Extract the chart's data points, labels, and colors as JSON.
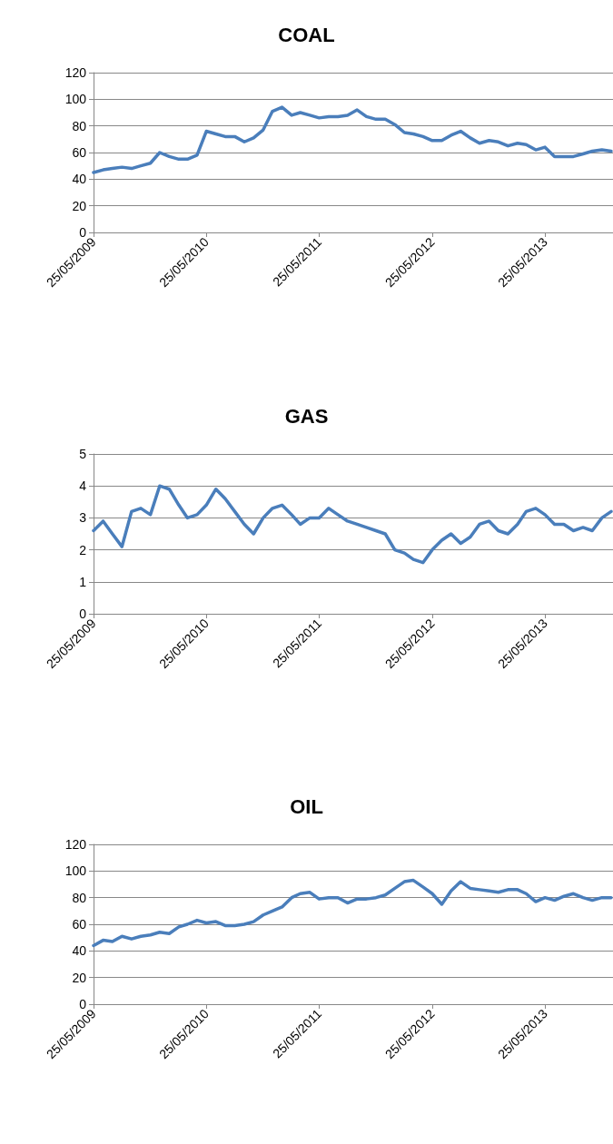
{
  "chart_data": [
    {
      "type": "line",
      "title": "COAL",
      "x": [
        "2009-05-25",
        "2009-06-25",
        "2009-07-25",
        "2009-08-25",
        "2009-09-25",
        "2009-10-25",
        "2009-11-25",
        "2009-12-25",
        "2010-01-25",
        "2010-02-25",
        "2010-03-25",
        "2010-04-25",
        "2010-05-25",
        "2010-06-25",
        "2010-07-25",
        "2010-08-25",
        "2010-09-25",
        "2010-10-25",
        "2010-11-25",
        "2010-12-25",
        "2011-01-25",
        "2011-02-25",
        "2011-03-25",
        "2011-04-25",
        "2011-05-25",
        "2011-06-25",
        "2011-07-25",
        "2011-08-25",
        "2011-09-25",
        "2011-10-25",
        "2011-11-25",
        "2011-12-25",
        "2012-01-25",
        "2012-02-25",
        "2012-03-25",
        "2012-04-25",
        "2012-05-25",
        "2012-06-25",
        "2012-07-25",
        "2012-08-25",
        "2012-09-25",
        "2012-10-25",
        "2012-11-25",
        "2012-12-25",
        "2013-01-25",
        "2013-02-25",
        "2013-03-25",
        "2013-04-25",
        "2013-05-25",
        "2013-06-25",
        "2013-07-25",
        "2013-08-25",
        "2013-09-25",
        "2013-10-25",
        "2013-11-25",
        "2013-12-25"
      ],
      "series": [
        {
          "color": "#4a7ebb",
          "values": [
            45,
            47,
            48,
            49,
            48,
            50,
            52,
            60,
            57,
            55,
            55,
            58,
            76,
            74,
            72,
            72,
            68,
            71,
            77,
            91,
            94,
            88,
            90,
            88,
            86,
            87,
            87,
            88,
            92,
            87,
            85,
            85,
            81,
            75,
            74,
            72,
            69,
            69,
            73,
            76,
            71,
            67,
            69,
            68,
            65,
            67,
            66,
            62,
            64,
            57,
            57,
            57,
            59,
            61,
            62,
            61
          ]
        }
      ],
      "xlim": [
        "2009-05-25",
        "2013-12-31"
      ],
      "xticks": [
        {
          "value": "2009-05-25",
          "label": "25/05/2009"
        },
        {
          "value": "2010-05-25",
          "label": "25/05/2010"
        },
        {
          "value": "2011-05-25",
          "label": "25/05/2011"
        },
        {
          "value": "2012-05-25",
          "label": "25/05/2012"
        },
        {
          "value": "2013-05-25",
          "label": "25/05/2013"
        }
      ],
      "ylim": [
        0,
        120
      ],
      "yticks": [
        0,
        20,
        40,
        60,
        80,
        100,
        120
      ],
      "grid": "y"
    },
    {
      "type": "line",
      "title": "GAS",
      "x": [
        "2009-05-25",
        "2009-06-25",
        "2009-07-25",
        "2009-08-25",
        "2009-09-25",
        "2009-10-25",
        "2009-11-25",
        "2009-12-25",
        "2010-01-25",
        "2010-02-25",
        "2010-03-25",
        "2010-04-25",
        "2010-05-25",
        "2010-06-25",
        "2010-07-25",
        "2010-08-25",
        "2010-09-25",
        "2010-10-25",
        "2010-11-25",
        "2010-12-25",
        "2011-01-25",
        "2011-02-25",
        "2011-03-25",
        "2011-04-25",
        "2011-05-25",
        "2011-06-25",
        "2011-07-25",
        "2011-08-25",
        "2011-09-25",
        "2011-10-25",
        "2011-11-25",
        "2011-12-25",
        "2012-01-25",
        "2012-02-25",
        "2012-03-25",
        "2012-04-25",
        "2012-05-25",
        "2012-06-25",
        "2012-07-25",
        "2012-08-25",
        "2012-09-25",
        "2012-10-25",
        "2012-11-25",
        "2012-12-25",
        "2013-01-25",
        "2013-02-25",
        "2013-03-25",
        "2013-04-25",
        "2013-05-25",
        "2013-06-25",
        "2013-07-25",
        "2013-08-25",
        "2013-09-25",
        "2013-10-25",
        "2013-11-25",
        "2013-12-25"
      ],
      "series": [
        {
          "color": "#4a7ebb",
          "values": [
            2.6,
            2.9,
            2.5,
            2.1,
            3.2,
            3.3,
            3.1,
            4,
            3.9,
            3.4,
            3,
            3.1,
            3.4,
            3.9,
            3.6,
            3.2,
            2.8,
            2.5,
            3,
            3.3,
            3.4,
            3.1,
            2.8,
            3,
            3,
            3.3,
            3.1,
            2.9,
            2.8,
            2.7,
            2.6,
            2.5,
            2,
            1.9,
            1.7,
            1.6,
            2,
            2.3,
            2.5,
            2.2,
            2.4,
            2.8,
            2.9,
            2.6,
            2.5,
            2.8,
            3.2,
            3.3,
            3.1,
            2.8,
            2.8,
            2.6,
            2.7,
            2.6,
            3,
            3.2
          ]
        }
      ],
      "xlim": [
        "2009-05-25",
        "2013-12-31"
      ],
      "xticks": [
        {
          "value": "2009-05-25",
          "label": "25/05/2009"
        },
        {
          "value": "2010-05-25",
          "label": "25/05/2010"
        },
        {
          "value": "2011-05-25",
          "label": "25/05/2011"
        },
        {
          "value": "2012-05-25",
          "label": "25/05/2012"
        },
        {
          "value": "2013-05-25",
          "label": "25/05/2013"
        }
      ],
      "ylim": [
        0,
        5
      ],
      "yticks": [
        0,
        1,
        2,
        3,
        4,
        5
      ],
      "grid": "y"
    },
    {
      "type": "line",
      "title": "OIL",
      "x": [
        "2009-05-25",
        "2009-06-25",
        "2009-07-25",
        "2009-08-25",
        "2009-09-25",
        "2009-10-25",
        "2009-11-25",
        "2009-12-25",
        "2010-01-25",
        "2010-02-25",
        "2010-03-25",
        "2010-04-25",
        "2010-05-25",
        "2010-06-25",
        "2010-07-25",
        "2010-08-25",
        "2010-09-25",
        "2010-10-25",
        "2010-11-25",
        "2010-12-25",
        "2011-01-25",
        "2011-02-25",
        "2011-03-25",
        "2011-04-25",
        "2011-05-25",
        "2011-06-25",
        "2011-07-25",
        "2011-08-25",
        "2011-09-25",
        "2011-10-25",
        "2011-11-25",
        "2011-12-25",
        "2012-01-25",
        "2012-02-25",
        "2012-03-25",
        "2012-04-25",
        "2012-05-25",
        "2012-06-25",
        "2012-07-25",
        "2012-08-25",
        "2012-09-25",
        "2012-10-25",
        "2012-11-25",
        "2012-12-25",
        "2013-01-25",
        "2013-02-25",
        "2013-03-25",
        "2013-04-25",
        "2013-05-25",
        "2013-06-25",
        "2013-07-25",
        "2013-08-25",
        "2013-09-25",
        "2013-10-25",
        "2013-11-25",
        "2013-12-25"
      ],
      "series": [
        {
          "color": "#4a7ebb",
          "values": [
            44,
            48,
            47,
            51,
            49,
            51,
            52,
            54,
            53,
            58,
            60,
            63,
            61,
            62,
            59,
            59,
            60,
            62,
            67,
            70,
            73,
            80,
            83,
            84,
            79,
            80,
            80,
            76,
            79,
            79,
            80,
            82,
            87,
            92,
            93,
            88,
            83,
            75,
            85,
            92,
            87,
            86,
            85,
            84,
            86,
            86,
            83,
            77,
            80,
            78,
            81,
            83,
            80,
            78,
            80,
            80
          ]
        }
      ],
      "xlim": [
        "2009-05-25",
        "2013-12-31"
      ],
      "xticks": [
        {
          "value": "2009-05-25",
          "label": "25/05/2009"
        },
        {
          "value": "2010-05-25",
          "label": "25/05/2010"
        },
        {
          "value": "2011-05-25",
          "label": "25/05/2011"
        },
        {
          "value": "2012-05-25",
          "label": "25/05/2012"
        },
        {
          "value": "2013-05-25",
          "label": "25/05/2013"
        }
      ],
      "ylim": [
        0,
        120
      ],
      "yticks": [
        0,
        20,
        40,
        60,
        80,
        100,
        120
      ],
      "grid": "y"
    }
  ]
}
